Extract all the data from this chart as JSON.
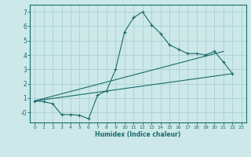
{
  "xlabel": "Humidex (Indice chaleur)",
  "ylabel": "",
  "background_color": "#cce8e8",
  "grid_color": "#aad0d0",
  "line_color": "#1a6b6b",
  "xlim": [
    -0.5,
    23.5
  ],
  "ylim": [
    -0.7,
    7.5
  ],
  "xticks": [
    0,
    1,
    2,
    3,
    4,
    5,
    6,
    7,
    8,
    9,
    10,
    11,
    12,
    13,
    14,
    15,
    16,
    17,
    18,
    19,
    20,
    21,
    22,
    23
  ],
  "yticks": [
    0,
    1,
    2,
    3,
    4,
    5,
    6,
    7
  ],
  "ytick_labels": [
    "-0",
    "1",
    "2",
    "3",
    "4",
    "5",
    "6",
    "7"
  ],
  "line1_x": [
    0,
    1,
    2,
    3,
    4,
    5,
    6,
    7,
    8,
    9,
    10,
    11,
    12,
    13,
    14,
    15,
    16,
    17,
    18,
    19,
    20,
    21,
    22
  ],
  "line1_y": [
    0.8,
    0.75,
    0.6,
    -0.15,
    -0.15,
    -0.2,
    -0.45,
    1.2,
    1.5,
    3.0,
    5.6,
    6.6,
    7.0,
    6.1,
    5.5,
    4.7,
    4.4,
    4.1,
    4.1,
    4.0,
    4.25,
    3.5,
    2.7
  ],
  "line2_x": [
    0,
    22
  ],
  "line2_y": [
    0.8,
    2.7
  ],
  "line3_x": [
    0,
    21
  ],
  "line3_y": [
    0.8,
    4.25
  ],
  "figsize": [
    3.2,
    2.0
  ],
  "dpi": 100
}
